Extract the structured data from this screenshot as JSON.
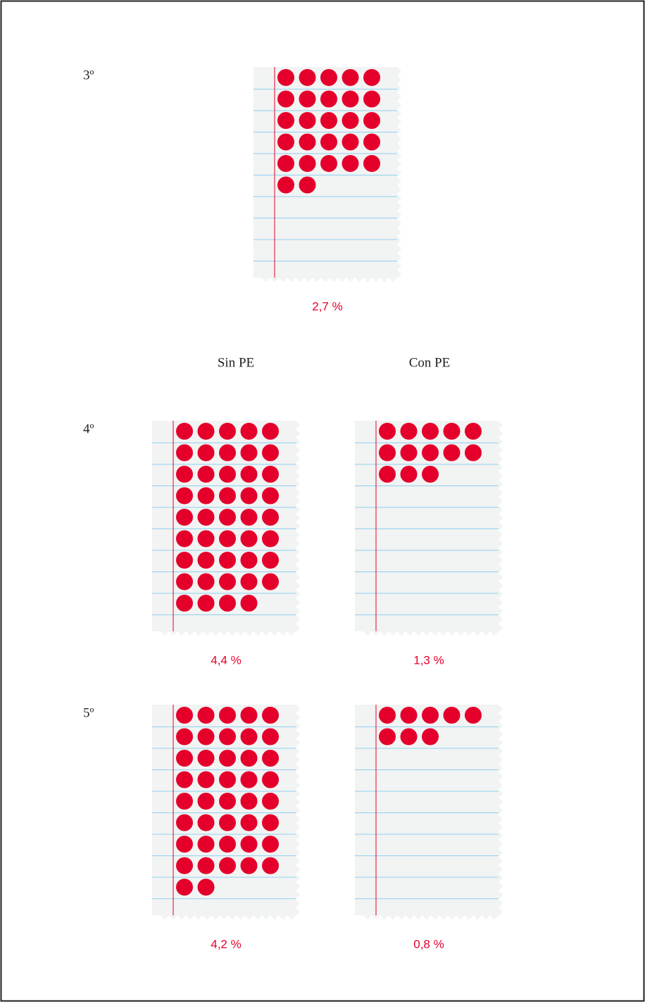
{
  "chart_data": {
    "type": "pictograph",
    "color": "#e4002b",
    "groups": [
      "Sin PE",
      "Con PE"
    ],
    "rows": [
      {
        "label": "3º",
        "values": [
          2.7
        ],
        "value_labels": [
          "2,7 %"
        ]
      },
      {
        "label": "4º",
        "values": [
          4.4,
          1.3
        ],
        "value_labels": [
          "4,4 %",
          "1,3 %"
        ]
      },
      {
        "label": "5º",
        "values": [
          4.2,
          0.8
        ],
        "value_labels": [
          "4,2 %",
          "0,8 %"
        ]
      }
    ]
  }
}
